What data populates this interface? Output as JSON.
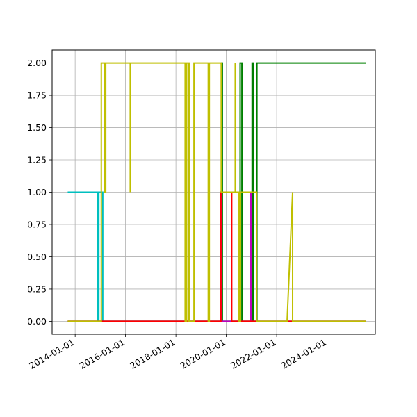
{
  "chart_data": {
    "type": "line",
    "title": "",
    "xlabel": "",
    "ylabel": "",
    "xlim": [
      "2013-02-01",
      "2025-12-01"
    ],
    "ylim": [
      -0.1,
      2.1
    ],
    "grid": true,
    "x_ticks": [
      "2014-01-01",
      "2016-01-01",
      "2018-01-01",
      "2020-01-01",
      "2022-01-01",
      "2024-01-01"
    ],
    "y_ticks": [
      0.0,
      0.25,
      0.5,
      0.75,
      1.0,
      1.25,
      1.5,
      1.75,
      2.0
    ],
    "y_tick_labels": [
      "0.00",
      "0.25",
      "0.50",
      "0.75",
      "1.00",
      "1.25",
      "1.50",
      "1.75",
      "2.00"
    ],
    "series": [
      {
        "color": "#00bfbf",
        "points": [
          [
            "2013-09-15",
            1
          ],
          [
            "2014-11-20",
            1
          ],
          [
            "2014-11-20",
            0
          ],
          [
            "2014-12-10",
            0
          ],
          [
            "2014-12-10",
            1
          ],
          [
            "2015-02-05",
            1
          ],
          [
            "2015-02-05",
            0
          ],
          [
            "2025-07-15",
            0
          ]
        ]
      },
      {
        "color": "#008000",
        "points": [
          [
            "2013-09-15",
            0
          ],
          [
            "2019-10-25",
            0
          ],
          [
            "2019-10-25",
            2
          ],
          [
            "2019-11-05",
            2
          ],
          [
            "2019-11-05",
            0
          ],
          [
            "2020-07-20",
            0
          ],
          [
            "2020-07-20",
            2
          ],
          [
            "2020-08-15",
            2
          ],
          [
            "2020-08-15",
            0
          ],
          [
            "2021-01-10",
            0
          ],
          [
            "2021-01-10",
            2
          ],
          [
            "2021-01-25",
            2
          ],
          [
            "2021-01-25",
            0
          ],
          [
            "2021-03-20",
            0
          ],
          [
            "2021-03-20",
            2
          ],
          [
            "2025-07-15",
            2
          ]
        ]
      },
      {
        "color": "#bf00bf",
        "points": [
          [
            "2013-09-15",
            0
          ],
          [
            "2019-10-10",
            0
          ],
          [
            "2019-10-10",
            1
          ],
          [
            "2019-10-20",
            1
          ],
          [
            "2019-10-20",
            0
          ],
          [
            "2020-12-15",
            0
          ],
          [
            "2020-12-15",
            1
          ],
          [
            "2020-12-25",
            1
          ],
          [
            "2020-12-25",
            0
          ],
          [
            "2025-07-15",
            0
          ]
        ]
      },
      {
        "color": "#ff0000",
        "points": [
          [
            "2013-09-15",
            0
          ],
          [
            "2019-10-15",
            0
          ],
          [
            "2019-10-15",
            1
          ],
          [
            "2020-03-20",
            1
          ],
          [
            "2020-03-20",
            0
          ],
          [
            "2025-07-15",
            0
          ]
        ]
      },
      {
        "color": "#bfbf00",
        "points": [
          [
            "2013-09-15",
            0
          ],
          [
            "2015-01-15",
            0
          ],
          [
            "2015-01-15",
            2
          ],
          [
            "2015-03-05",
            2
          ],
          [
            "2015-03-05",
            1
          ],
          [
            "2015-03-20",
            1
          ],
          [
            "2015-03-20",
            2
          ],
          [
            "2016-03-10",
            2
          ],
          [
            "2016-03-10",
            1
          ],
          [
            "2016-03-10",
            2
          ],
          [
            "2018-05-15",
            2
          ],
          [
            "2018-05-15",
            0
          ],
          [
            "2018-06-05",
            0
          ],
          [
            "2018-06-05",
            2
          ],
          [
            "2018-07-10",
            2
          ],
          [
            "2018-07-10",
            0
          ],
          [
            "2018-09-20",
            0
          ],
          [
            "2018-09-20",
            2
          ],
          [
            "2019-04-15",
            2
          ],
          [
            "2019-04-15",
            0
          ],
          [
            "2019-04-30",
            0
          ],
          [
            "2019-04-30",
            2
          ],
          [
            "2019-10-20",
            2
          ],
          [
            "2019-10-20",
            1
          ],
          [
            "2020-05-10",
            1
          ],
          [
            "2020-05-10",
            2
          ],
          [
            "2020-05-10",
            1
          ],
          [
            "2020-07-05",
            1
          ],
          [
            "2020-07-05",
            0
          ],
          [
            "2020-07-25",
            0
          ],
          [
            "2020-07-25",
            1
          ],
          [
            "2021-03-15",
            1
          ],
          [
            "2021-03-15",
            0
          ],
          [
            "2022-06-01",
            0
          ],
          [
            "2022-08-20",
            1
          ],
          [
            "2022-08-20",
            0
          ],
          [
            "2025-07-15",
            0
          ]
        ]
      }
    ]
  }
}
